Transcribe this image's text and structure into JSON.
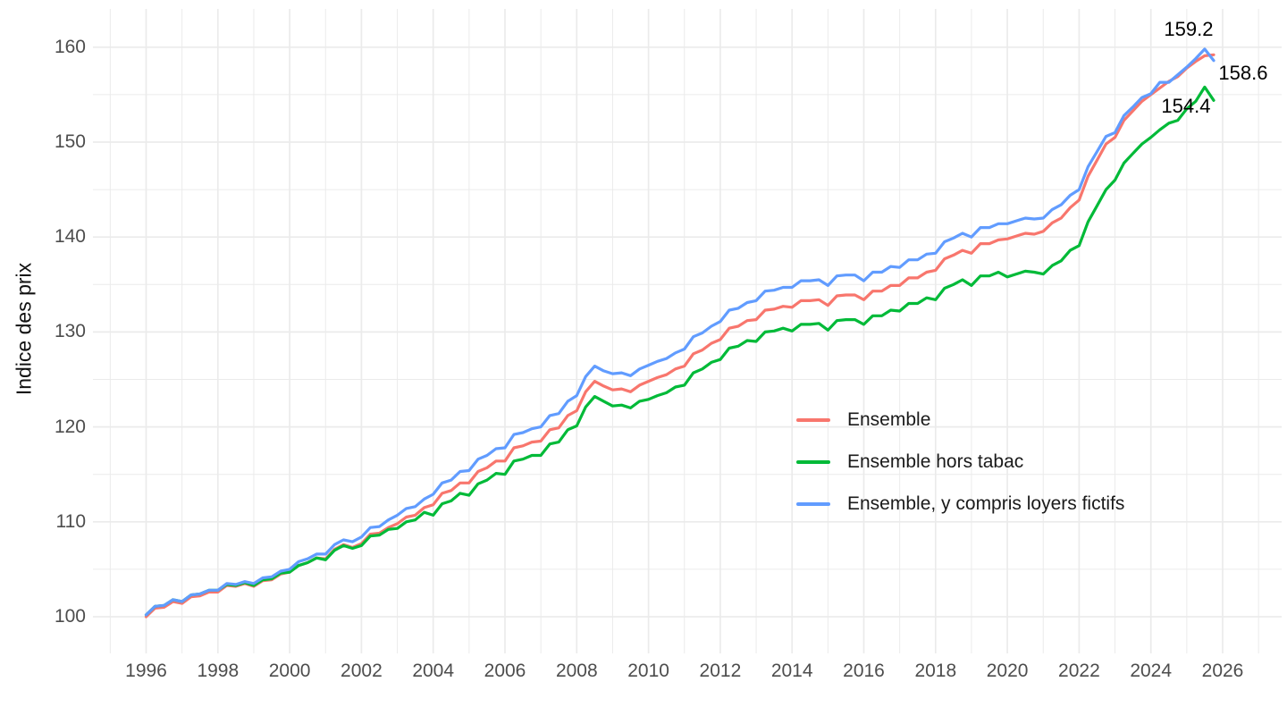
{
  "chart_data": {
    "type": "line",
    "title": "",
    "xlabel": "",
    "ylabel": "Indice des prix",
    "x_unit": "year (monthly/quarterly price index series)",
    "x_start": 1996.0,
    "x_step": 0.25,
    "x_end": 2025.75,
    "xlim": [
      1994.5,
      2027.3
    ],
    "ylim": [
      97,
      162.5
    ],
    "x_ticks": [
      1996,
      1998,
      2000,
      2002,
      2004,
      2006,
      2008,
      2010,
      2012,
      2014,
      2016,
      2018,
      2020,
      2022,
      2024,
      2026
    ],
    "y_ticks": [
      100,
      110,
      120,
      130,
      140,
      150,
      160
    ],
    "grid": {
      "vertical_every": 1,
      "horizontal_every": 5,
      "color": "#ebebeb",
      "background": "#ffffff"
    },
    "legend_position": "inside-right-middle",
    "series": [
      {
        "id": "ensemble",
        "name": "Ensemble",
        "color": "#F8766D",
        "end_value": 159.2,
        "end_label": "159.2",
        "values": [
          100.0,
          100.9,
          101.0,
          101.6,
          101.4,
          102.1,
          102.2,
          102.6,
          102.6,
          103.3,
          103.2,
          103.5,
          103.2,
          103.8,
          103.9,
          104.5,
          104.7,
          105.4,
          105.7,
          106.2,
          106.1,
          107.1,
          107.6,
          107.3,
          107.7,
          108.7,
          108.8,
          109.4,
          109.8,
          110.5,
          110.7,
          111.5,
          111.8,
          113.0,
          113.3,
          114.1,
          114.1,
          115.3,
          115.7,
          116.4,
          116.4,
          117.8,
          118.0,
          118.4,
          118.5,
          119.7,
          119.9,
          121.2,
          121.7,
          123.7,
          124.8,
          124.3,
          123.9,
          124.0,
          123.7,
          124.4,
          124.8,
          125.2,
          125.5,
          126.1,
          126.4,
          127.7,
          128.1,
          128.8,
          129.2,
          130.4,
          130.6,
          131.2,
          131.3,
          132.3,
          132.4,
          132.7,
          132.6,
          133.3,
          133.3,
          133.4,
          132.8,
          133.8,
          133.9,
          133.9,
          133.4,
          134.3,
          134.3,
          134.9,
          134.9,
          135.7,
          135.7,
          136.3,
          136.5,
          137.7,
          138.1,
          138.6,
          138.3,
          139.3,
          139.3,
          139.7,
          139.8,
          140.1,
          140.4,
          140.3,
          140.6,
          141.5,
          142.0,
          143.1,
          143.9,
          146.4,
          148.1,
          149.8,
          150.5,
          152.3,
          153.3,
          154.3,
          155.0,
          155.7,
          156.4,
          156.9,
          157.8,
          158.5,
          159.1,
          159.2
        ]
      },
      {
        "id": "hors-tabac",
        "name": "Ensemble hors tabac",
        "color": "#00BA38",
        "end_value": 154.4,
        "end_label": "154.4",
        "values": [
          100.2,
          101.1,
          101.2,
          101.8,
          101.6,
          102.3,
          102.4,
          102.8,
          102.8,
          103.4,
          103.3,
          103.6,
          103.3,
          103.9,
          104.0,
          104.6,
          104.7,
          105.4,
          105.7,
          106.2,
          106.0,
          107.0,
          107.5,
          107.2,
          107.5,
          108.5,
          108.6,
          109.2,
          109.3,
          110.0,
          110.2,
          111.0,
          110.7,
          111.9,
          112.2,
          113.0,
          112.8,
          114.0,
          114.4,
          115.1,
          115.0,
          116.4,
          116.6,
          117.0,
          117.0,
          118.2,
          118.4,
          119.7,
          120.1,
          122.1,
          123.2,
          122.7,
          122.2,
          122.3,
          122.0,
          122.7,
          122.9,
          123.3,
          123.6,
          124.2,
          124.4,
          125.7,
          126.1,
          126.8,
          127.1,
          128.3,
          128.5,
          129.1,
          129.0,
          130.0,
          130.1,
          130.4,
          130.1,
          130.8,
          130.8,
          130.9,
          130.2,
          131.2,
          131.3,
          131.3,
          130.8,
          131.7,
          131.7,
          132.3,
          132.2,
          133.0,
          133.0,
          133.6,
          133.4,
          134.6,
          135.0,
          135.5,
          134.9,
          135.9,
          135.9,
          136.3,
          135.8,
          136.1,
          136.4,
          136.3,
          136.1,
          137.0,
          137.5,
          138.6,
          139.1,
          141.6,
          143.3,
          145.0,
          146.0,
          147.8,
          148.8,
          149.8,
          150.5,
          151.3,
          152.0,
          152.3,
          153.5,
          154.3,
          155.8,
          154.4
        ]
      },
      {
        "id": "loyers-fictifs",
        "name": "Ensemble, y compris loyers fictifs",
        "color": "#619CFF",
        "end_value": 158.6,
        "end_label": "158.6",
        "values": [
          100.2,
          101.1,
          101.2,
          101.8,
          101.6,
          102.3,
          102.4,
          102.8,
          102.8,
          103.5,
          103.4,
          103.7,
          103.5,
          104.1,
          104.2,
          104.8,
          105.0,
          105.8,
          106.1,
          106.6,
          106.6,
          107.6,
          108.1,
          107.9,
          108.4,
          109.4,
          109.5,
          110.2,
          110.7,
          111.4,
          111.6,
          112.4,
          112.9,
          114.1,
          114.4,
          115.3,
          115.4,
          116.6,
          117.0,
          117.7,
          117.8,
          119.2,
          119.4,
          119.8,
          120.0,
          121.2,
          121.4,
          122.7,
          123.3,
          125.3,
          126.4,
          125.9,
          125.6,
          125.7,
          125.4,
          126.1,
          126.5,
          126.9,
          127.2,
          127.8,
          128.2,
          129.5,
          129.9,
          130.6,
          131.1,
          132.3,
          132.5,
          133.1,
          133.3,
          134.3,
          134.4,
          134.7,
          134.7,
          135.4,
          135.4,
          135.5,
          134.9,
          135.9,
          136.0,
          136.0,
          135.4,
          136.3,
          136.3,
          136.9,
          136.8,
          137.6,
          137.6,
          138.2,
          138.3,
          139.5,
          139.9,
          140.4,
          140.0,
          141.0,
          141.0,
          141.4,
          141.4,
          141.7,
          142.0,
          141.9,
          142.0,
          142.9,
          143.4,
          144.4,
          145.0,
          147.4,
          149.0,
          150.6,
          151.0,
          152.8,
          153.7,
          154.7,
          155.1,
          156.3,
          156.3,
          157.1,
          157.9,
          158.8,
          159.8,
          158.6
        ]
      }
    ]
  },
  "axes": {
    "y_title": "Indice des prix",
    "y_tick_labels": [
      "100",
      "110",
      "120",
      "130",
      "140",
      "150",
      "160"
    ],
    "x_tick_labels": [
      "1996",
      "1998",
      "2000",
      "2002",
      "2004",
      "2006",
      "2008",
      "2010",
      "2012",
      "2014",
      "2016",
      "2018",
      "2020",
      "2022",
      "2024",
      "2026"
    ]
  },
  "legend": {
    "items": [
      {
        "label": "Ensemble",
        "color": "#F8766D"
      },
      {
        "label": "Ensemble hors tabac",
        "color": "#00BA38"
      },
      {
        "label": "Ensemble, y compris loyers fictifs",
        "color": "#619CFF"
      }
    ]
  },
  "end_labels": {
    "ensemble": "159.2",
    "loyers_fictifs": "158.6",
    "hors_tabac": "154.4"
  },
  "colors": {
    "background": "#ffffff",
    "grid": "#ebebeb",
    "tick_text": "#4d4d4d",
    "label_text": "#000000"
  }
}
